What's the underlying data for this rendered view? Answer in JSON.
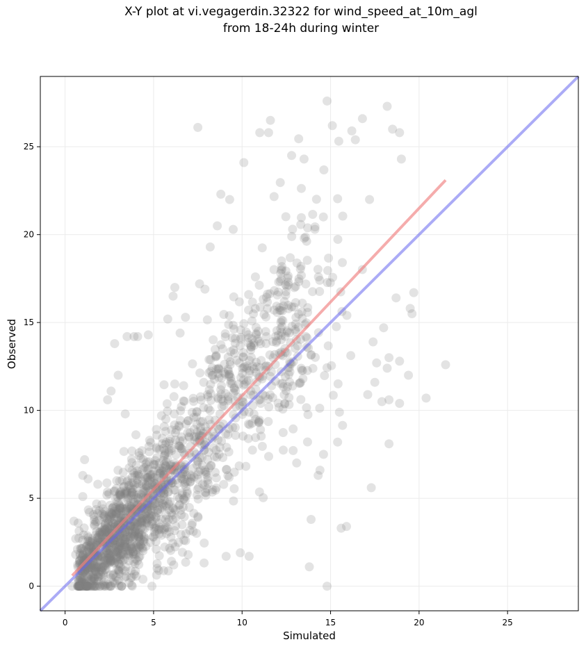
{
  "chart_data": {
    "type": "scatter",
    "title_line1": "X-Y plot at vi.vegagerdin.32322 for wind_speed_at_10m_agl",
    "title_line2": "from 18-24h during winter",
    "xlabel": "Simulated",
    "ylabel": "Observed",
    "xlim": [
      -1.4,
      29.0
    ],
    "ylim": [
      -1.4,
      29.0
    ],
    "xticks": [
      0,
      5,
      10,
      15,
      20,
      25
    ],
    "yticks": [
      0,
      5,
      10,
      15,
      20,
      25
    ],
    "grid": true,
    "point_color": "#808080",
    "fit_line": {
      "color": "#f08080",
      "x": [
        0.4,
        21.5
      ],
      "y": [
        0.6,
        23.1
      ]
    },
    "identity_line": {
      "color": "#6666ee",
      "x": [
        -1.4,
        29.0
      ],
      "y": [
        -1.4,
        29.0
      ]
    },
    "highlighted_points": [
      [
        14.8,
        27.6
      ],
      [
        18.2,
        27.3
      ],
      [
        16.8,
        26.6
      ],
      [
        11.6,
        26.5
      ],
      [
        7.5,
        26.1
      ],
      [
        15.1,
        26.2
      ],
      [
        18.5,
        26.0
      ],
      [
        18.9,
        25.8
      ],
      [
        11.0,
        25.8
      ],
      [
        11.5,
        25.8
      ],
      [
        16.2,
        25.9
      ],
      [
        16.4,
        25.4
      ],
      [
        12.8,
        24.5
      ],
      [
        13.5,
        24.3
      ],
      [
        19.0,
        24.3
      ],
      [
        10.1,
        24.1
      ],
      [
        8.8,
        22.3
      ],
      [
        9.3,
        22.0
      ],
      [
        17.2,
        22.0
      ],
      [
        8.6,
        20.5
      ],
      [
        9.5,
        20.3
      ],
      [
        8.2,
        19.3
      ],
      [
        7.6,
        17.2
      ],
      [
        6.2,
        17.0
      ],
      [
        7.9,
        16.9
      ],
      [
        6.1,
        16.5
      ],
      [
        19.7,
        16.7
      ],
      [
        18.7,
        16.4
      ],
      [
        5.8,
        15.2
      ],
      [
        6.8,
        15.3
      ],
      [
        19.6,
        15.5
      ],
      [
        19.5,
        15.8
      ],
      [
        3.5,
        14.2
      ],
      [
        3.9,
        14.2
      ],
      [
        4.1,
        14.2
      ],
      [
        4.7,
        14.3
      ],
      [
        6.5,
        14.4
      ],
      [
        18.0,
        14.7
      ],
      [
        2.8,
        13.8
      ],
      [
        17.4,
        13.9
      ],
      [
        18.3,
        13.0
      ],
      [
        17.6,
        12.7
      ],
      [
        18.9,
        12.8
      ],
      [
        21.5,
        12.6
      ],
      [
        3.0,
        12.0
      ],
      [
        18.2,
        12.4
      ],
      [
        19.4,
        12.0
      ],
      [
        2.6,
        11.1
      ],
      [
        17.5,
        11.6
      ],
      [
        17.1,
        10.9
      ],
      [
        2.4,
        10.6
      ],
      [
        17.9,
        10.5
      ],
      [
        18.3,
        10.6
      ],
      [
        18.9,
        10.4
      ],
      [
        20.4,
        10.7
      ],
      [
        3.4,
        9.8
      ],
      [
        15.5,
        9.9
      ],
      [
        15.4,
        8.2
      ],
      [
        18.3,
        8.1
      ],
      [
        14.6,
        7.5
      ],
      [
        1.1,
        7.2
      ],
      [
        14.4,
        6.6
      ],
      [
        1.0,
        6.3
      ],
      [
        1.3,
        6.1
      ],
      [
        14.3,
        6.3
      ],
      [
        1.0,
        5.1
      ],
      [
        17.3,
        5.6
      ],
      [
        0.5,
        3.7
      ],
      [
        13.9,
        3.8
      ],
      [
        15.6,
        3.3
      ],
      [
        15.9,
        3.4
      ],
      [
        0.7,
        2.1
      ],
      [
        0.6,
        1.8
      ],
      [
        13.8,
        1.1
      ],
      [
        0.8,
        0.0
      ],
      [
        14.8,
        0.0
      ],
      [
        0.6,
        2.7
      ],
      [
        1.6,
        0.3
      ],
      [
        2.7,
        0.2
      ],
      [
        9.1,
        1.7
      ],
      [
        9.9,
        1.9
      ],
      [
        10.4,
        1.7
      ]
    ]
  }
}
